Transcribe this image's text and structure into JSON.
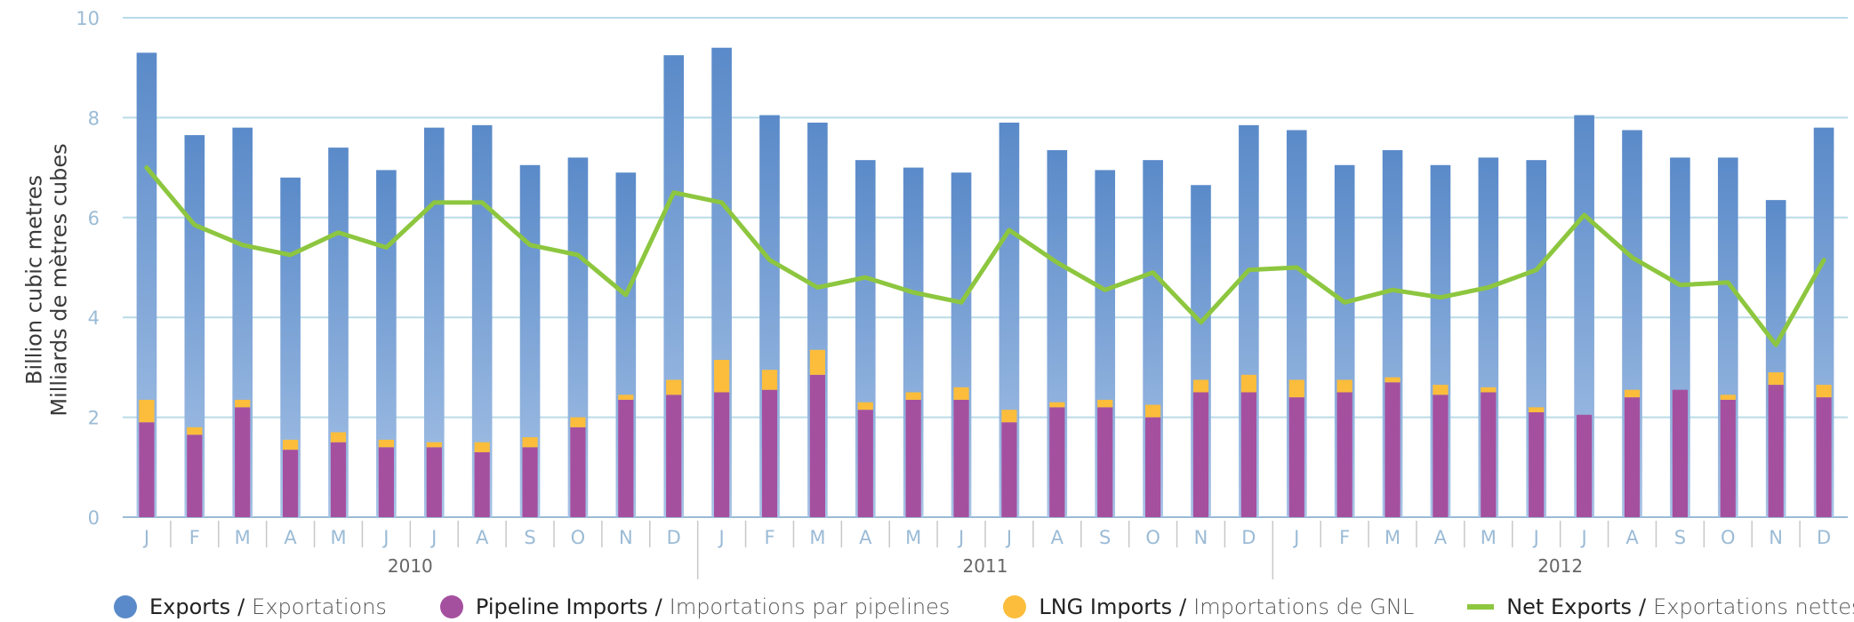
{
  "colors": {
    "exports_top": "#5a8ac9",
    "exports_bottom": "#a7c3e6",
    "pipeline": "#a5509f",
    "lng": "#fbbd3b",
    "net": "#8dc63f",
    "grid": "#b9dbe8",
    "tick": "#9bbbd6"
  },
  "y_label": {
    "line1": "Billion cubic metres",
    "line2": "Milliards de mètres cubes"
  },
  "legend": [
    {
      "key": "exports",
      "en": "Exports",
      "fr": "Exportations",
      "shape": "circle",
      "color": "#5a8ac9"
    },
    {
      "key": "pipeline",
      "en": "Pipeline Imports",
      "fr": "Importations par pipelines",
      "shape": "circle",
      "color": "#a5509f"
    },
    {
      "key": "lng",
      "en": "LNG Imports",
      "fr": "Importations de GNL",
      "shape": "circle",
      "color": "#fbbd3b"
    },
    {
      "key": "net",
      "en": "Net Exports",
      "fr": "Exportations nettes",
      "shape": "line",
      "color": "#8dc63f"
    }
  ],
  "chart_data": {
    "type": "bar",
    "ylim": [
      0,
      10
    ],
    "yticks": [
      0,
      2,
      4,
      6,
      8,
      10
    ],
    "grid": true,
    "legend_position": "bottom",
    "categories": [
      "J",
      "F",
      "M",
      "A",
      "M",
      "J",
      "J",
      "A",
      "S",
      "O",
      "N",
      "D",
      "J",
      "F",
      "M",
      "A",
      "M",
      "J",
      "J",
      "A",
      "S",
      "O",
      "N",
      "D",
      "J",
      "F",
      "M",
      "A",
      "M",
      "J",
      "J",
      "A",
      "S",
      "O",
      "N",
      "D"
    ],
    "years": [
      {
        "label": "2010",
        "start": 0,
        "end": 11
      },
      {
        "label": "2011",
        "start": 12,
        "end": 23
      },
      {
        "label": "2012",
        "start": 24,
        "end": 35
      }
    ],
    "series": [
      {
        "name": "Exports",
        "type": "bar",
        "values": [
          9.3,
          7.65,
          7.8,
          6.8,
          7.4,
          6.95,
          7.8,
          7.85,
          7.05,
          7.2,
          6.9,
          9.25,
          9.4,
          8.05,
          7.9,
          7.15,
          7.0,
          6.9,
          7.9,
          7.35,
          6.95,
          7.15,
          6.65,
          7.85,
          7.75,
          7.05,
          7.35,
          7.05,
          7.2,
          7.15,
          8.05,
          7.75,
          7.2,
          7.2,
          6.35,
          7.8
        ]
      },
      {
        "name": "Pipeline Imports",
        "type": "stacked-bar",
        "values": [
          1.9,
          1.65,
          2.2,
          1.35,
          1.5,
          1.4,
          1.4,
          1.3,
          1.4,
          1.8,
          2.35,
          2.45,
          2.5,
          2.55,
          2.85,
          2.15,
          2.35,
          2.35,
          1.9,
          2.2,
          2.2,
          2.0,
          2.5,
          2.5,
          2.4,
          2.5,
          2.7,
          2.45,
          2.5,
          2.1,
          2.05,
          2.4,
          2.55,
          2.35,
          2.65,
          2.4
        ]
      },
      {
        "name": "LNG Imports",
        "type": "stacked-bar",
        "values": [
          0.45,
          0.15,
          0.15,
          0.2,
          0.2,
          0.15,
          0.1,
          0.2,
          0.2,
          0.2,
          0.1,
          0.3,
          0.65,
          0.4,
          0.5,
          0.15,
          0.15,
          0.25,
          0.25,
          0.1,
          0.15,
          0.25,
          0.25,
          0.35,
          0.35,
          0.25,
          0.1,
          0.2,
          0.1,
          0.1,
          0.0,
          0.15,
          0.0,
          0.1,
          0.25,
          0.25
        ]
      },
      {
        "name": "Net Exports",
        "type": "line",
        "values": [
          7.0,
          5.85,
          5.45,
          5.25,
          5.7,
          5.4,
          6.3,
          6.3,
          5.45,
          5.25,
          4.45,
          6.5,
          6.3,
          5.15,
          4.6,
          4.8,
          4.5,
          4.3,
          5.75,
          5.1,
          4.55,
          4.9,
          3.9,
          4.95,
          5.0,
          4.3,
          4.55,
          4.4,
          4.6,
          4.95,
          6.05,
          5.2,
          4.65,
          4.7,
          3.45,
          5.15
        ]
      }
    ]
  }
}
